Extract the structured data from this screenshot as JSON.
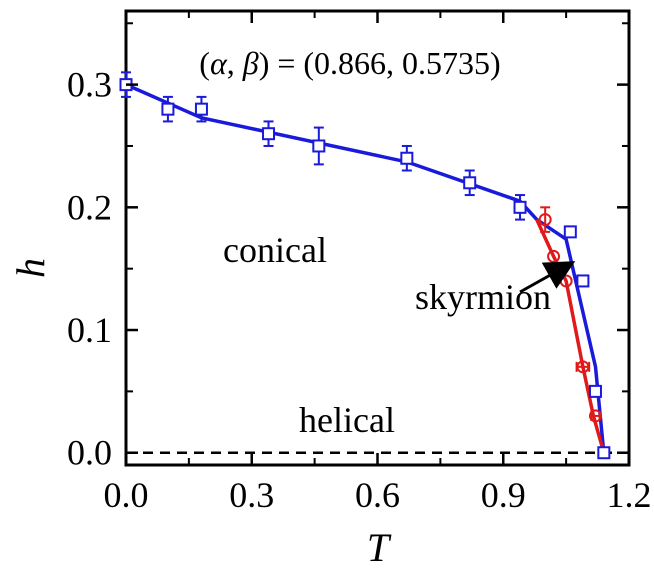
{
  "chart_data": {
    "type": "scatter",
    "xlabel": "T",
    "ylabel": "h",
    "xlim": [
      0.0,
      1.2
    ],
    "ylim": [
      -0.01,
      0.36
    ],
    "xticks": [
      0.0,
      0.3,
      0.6,
      0.9,
      1.2
    ],
    "yticks": [
      0.0,
      0.1,
      0.2,
      0.3
    ],
    "xtick_labels": [
      "0.0",
      "0.3",
      "0.6",
      "0.9",
      "1.2"
    ],
    "ytick_labels": [
      "0.0",
      "0.1",
      "0.2",
      "0.3"
    ],
    "grid": false,
    "annotations": {
      "params": {
        "prefix": "(",
        "alpha": "α",
        "comma": ", ",
        "beta": "β",
        "suffix": ") = (0.866, 0.5735)"
      },
      "conical": "conical",
      "helical": "helical",
      "skyrmion": "skyrmion"
    },
    "series": [
      {
        "marker": "square",
        "color": "#1a1adb",
        "line": "blue-boundary",
        "points": [
          {
            "x": 0.0,
            "y": 0.3,
            "yerr": 0.01,
            "xerr": 0.0
          },
          {
            "x": 0.1,
            "y": 0.28,
            "yerr": 0.01,
            "xerr": 0.0
          },
          {
            "x": 0.18,
            "y": 0.28,
            "yerr": 0.01,
            "xerr": 0.0
          },
          {
            "x": 0.34,
            "y": 0.26,
            "yerr": 0.01,
            "xerr": 0.0
          },
          {
            "x": 0.46,
            "y": 0.25,
            "yerr": 0.015,
            "xerr": 0.0
          },
          {
            "x": 0.67,
            "y": 0.24,
            "yerr": 0.01,
            "xerr": 0.0
          },
          {
            "x": 0.82,
            "y": 0.22,
            "yerr": 0.01,
            "xerr": 0.0
          },
          {
            "x": 0.94,
            "y": 0.2,
            "yerr": 0.01,
            "xerr": 0.0
          },
          {
            "x": 1.06,
            "y": 0.18,
            "yerr": 0.0,
            "xerr": 0.01
          },
          {
            "x": 1.09,
            "y": 0.14,
            "yerr": 0.0,
            "xerr": 0.01
          },
          {
            "x": 1.12,
            "y": 0.05,
            "yerr": 0.0,
            "xerr": 0.01
          },
          {
            "x": 1.14,
            "y": 0.0,
            "yerr": 0.0,
            "xerr": 0.0
          }
        ]
      },
      {
        "marker": "circle",
        "color": "#e01a1a",
        "line": "red-boundary",
        "points": [
          {
            "x": 1.0,
            "y": 0.19,
            "yerr": 0.01,
            "xerr": 0.0
          },
          {
            "x": 1.02,
            "y": 0.16,
            "yerr": 0.0,
            "xerr": 0.0
          },
          {
            "x": 1.05,
            "y": 0.14,
            "yerr": 0.0,
            "xerr": 0.0
          },
          {
            "x": 1.09,
            "y": 0.07,
            "yerr": 0.0,
            "xerr": 0.015
          },
          {
            "x": 1.12,
            "y": 0.03,
            "yerr": 0.0,
            "xerr": 0.01
          }
        ]
      }
    ],
    "lines": [
      {
        "name": "blue-boundary",
        "color": "#1a1adb",
        "x": [
          0.0,
          0.18,
          0.67,
          0.94,
          0.98,
          1.05,
          1.12,
          1.14
        ],
        "y": [
          0.3,
          0.273,
          0.237,
          0.205,
          0.19,
          0.174,
          0.07,
          0.0
        ]
      },
      {
        "name": "red-boundary",
        "color": "#e01a1a",
        "x": [
          0.98,
          1.02,
          1.05,
          1.09,
          1.115,
          1.14
        ],
        "y": [
          0.19,
          0.16,
          0.14,
          0.07,
          0.03,
          0.0
        ]
      }
    ],
    "reference_line": {
      "y": 0.0,
      "style": "dashed",
      "color": "#000000"
    }
  }
}
